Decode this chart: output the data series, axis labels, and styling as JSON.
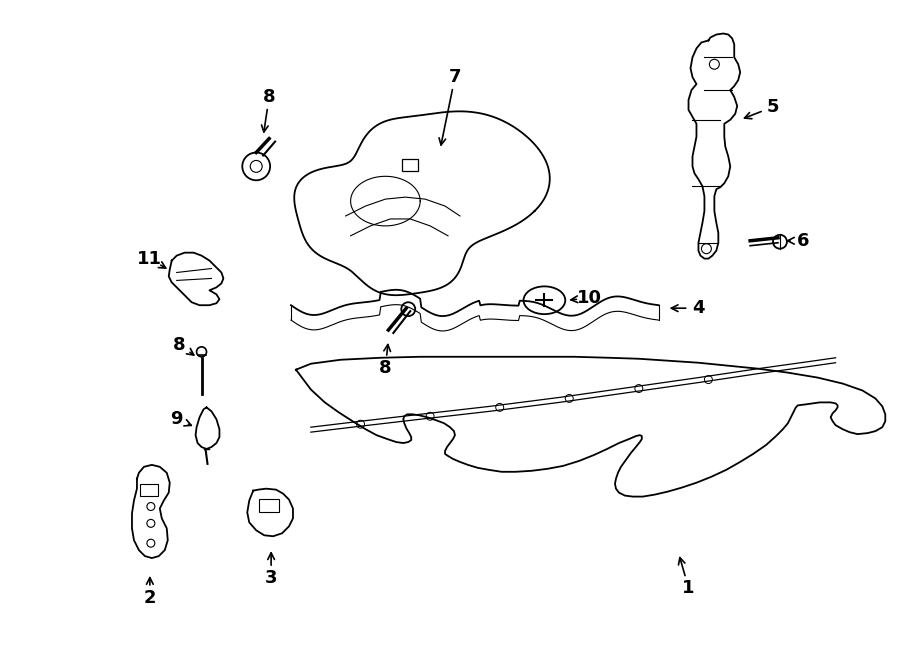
{
  "background_color": "#ffffff",
  "line_color": "#000000",
  "fig_width": 9.0,
  "fig_height": 6.61,
  "dpi": 100
}
